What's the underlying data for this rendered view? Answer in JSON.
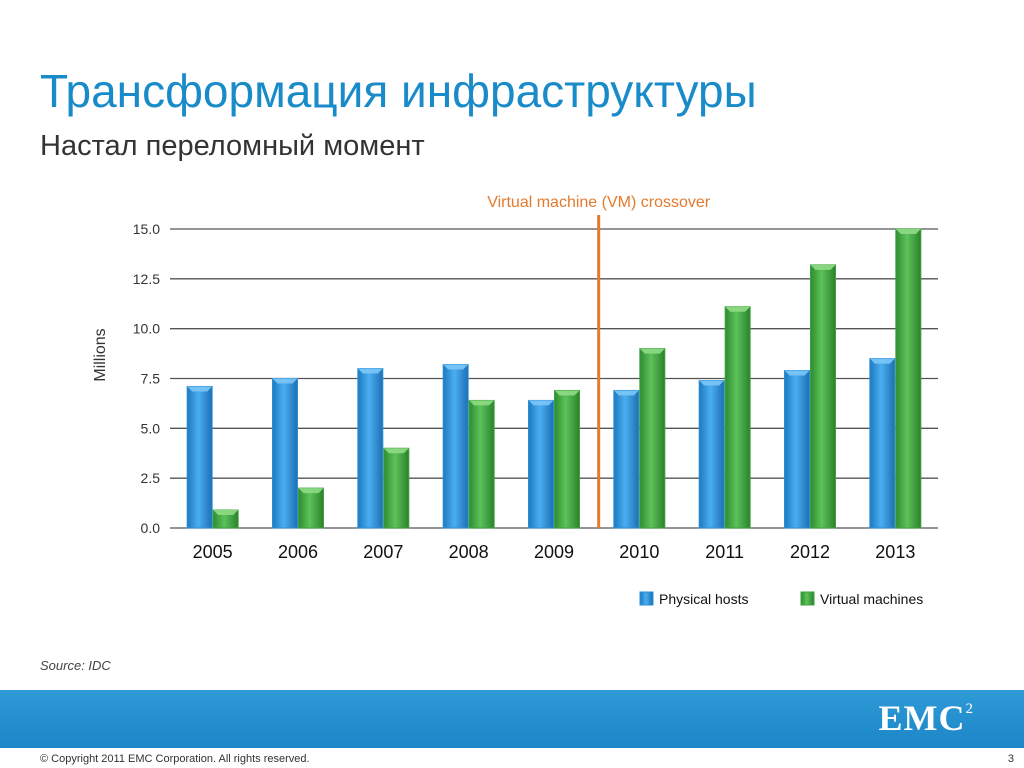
{
  "slide": {
    "title": "Трансформация инфраструктуры",
    "subtitle": "Настал переломный момент",
    "source": "Source: IDC",
    "logo_text": "EMC",
    "logo_superscript": "2",
    "copyright": "© Copyright 2011 EMC Corporation. All rights reserved.",
    "page_number": "3"
  },
  "colors": {
    "title": "#1a8bc9",
    "physical": "#2a8fd8",
    "virtual": "#3da13d",
    "crossover": "#e57a2e",
    "footer": "#2391cf"
  },
  "chart_data": {
    "type": "bar",
    "categories": [
      "2005",
      "2006",
      "2007",
      "2008",
      "2009",
      "2010",
      "2011",
      "2012",
      "2013"
    ],
    "series": [
      {
        "name": "Physical hosts",
        "values": [
          7.1,
          7.5,
          8.0,
          8.2,
          6.4,
          6.9,
          7.4,
          7.9,
          8.5
        ]
      },
      {
        "name": "Virtual machines",
        "values": [
          0.9,
          2.0,
          4.0,
          6.4,
          6.9,
          9.0,
          11.1,
          13.2,
          15.0
        ]
      }
    ],
    "ylabel": "Millions",
    "ylim": [
      0,
      15
    ],
    "yticks": [
      "0.0",
      "2.5",
      "5.0",
      "7.5",
      "10.0",
      "12.5",
      "15.0"
    ],
    "grid": true,
    "legend_position": "bottom-right",
    "annotation": {
      "label": "Virtual machine (VM) crossover",
      "between": [
        "2009",
        "2010"
      ]
    }
  }
}
